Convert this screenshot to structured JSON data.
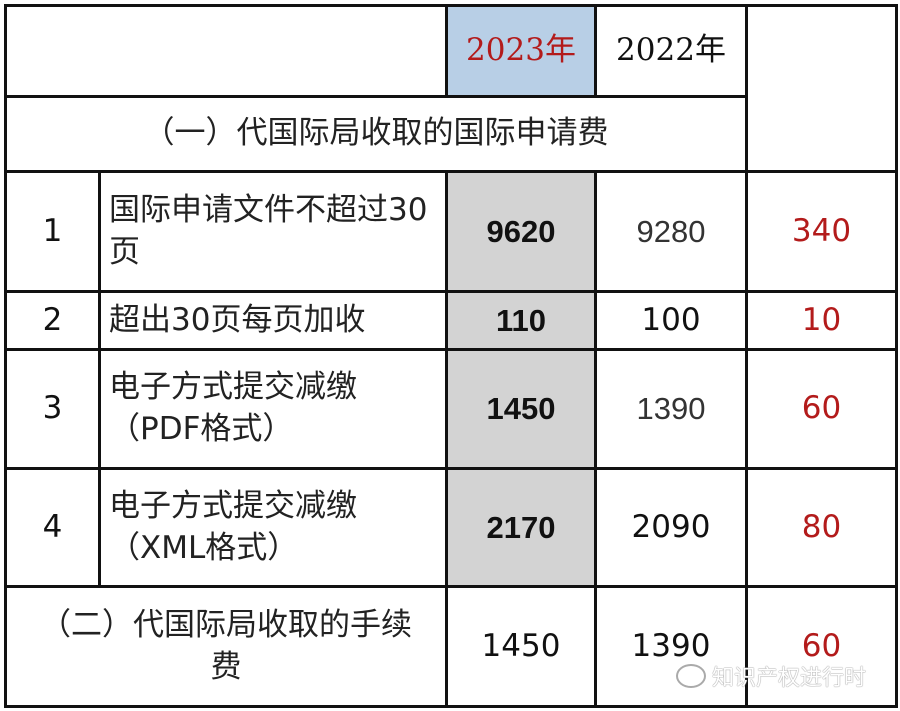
{
  "header": {
    "year_2023": "2023年",
    "year_2022": "2022年"
  },
  "section1": {
    "title": "（一）代国际局收取的国际申请费"
  },
  "rows": [
    {
      "no": "1",
      "item": "国际申请文件不超过30页",
      "v2023": "9620",
      "v2022": "9280",
      "diff": "340"
    },
    {
      "no": "2",
      "item": "超出30页每页加收",
      "v2023": "110",
      "v2022": "100",
      "diff": "10"
    },
    {
      "no": "3",
      "item": "电子方式提交减缴（PDF格式）",
      "v2023": "1450",
      "v2022": "1390",
      "diff": "60"
    },
    {
      "no": "4",
      "item": "电子方式提交减缴（XML格式）",
      "v2023": "2170",
      "v2022": "2090",
      "diff": "80"
    }
  ],
  "section2": {
    "title": "（二）代国际局收取的手续费",
    "v2023": "1450",
    "v2022": "1390",
    "diff": "60"
  },
  "watermark": {
    "text": "知识产权进行时",
    "icon": "wechat-icon"
  },
  "colors": {
    "highlight_2023": "#b8cfe6",
    "column_2023": "#d3d3d3",
    "diff_red": "#b31b1b"
  }
}
